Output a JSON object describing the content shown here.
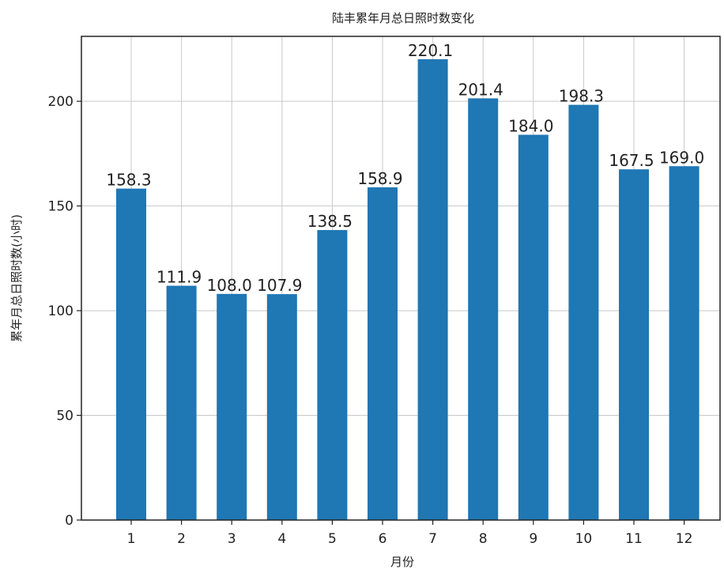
{
  "chart_data": {
    "type": "bar",
    "title": "陆丰累年月总日照时数变化",
    "xlabel": "月份",
    "ylabel": "累年月总日照时数(小时)",
    "categories": [
      "1",
      "2",
      "3",
      "4",
      "5",
      "6",
      "7",
      "8",
      "9",
      "10",
      "11",
      "12"
    ],
    "values": [
      158.3,
      111.9,
      108.0,
      107.9,
      138.5,
      158.9,
      220.1,
      201.4,
      184.0,
      198.3,
      167.5,
      169.0
    ],
    "value_labels": [
      "158.3",
      "111.9",
      "108.0",
      "107.9",
      "138.5",
      "158.9",
      "220.1",
      "201.4",
      "184.0",
      "198.3",
      "167.5",
      "169.0"
    ],
    "yticks": [
      0,
      50,
      100,
      150,
      200
    ],
    "ylim": [
      0,
      231
    ],
    "grid": true,
    "bar_color": "#1f77b4"
  }
}
